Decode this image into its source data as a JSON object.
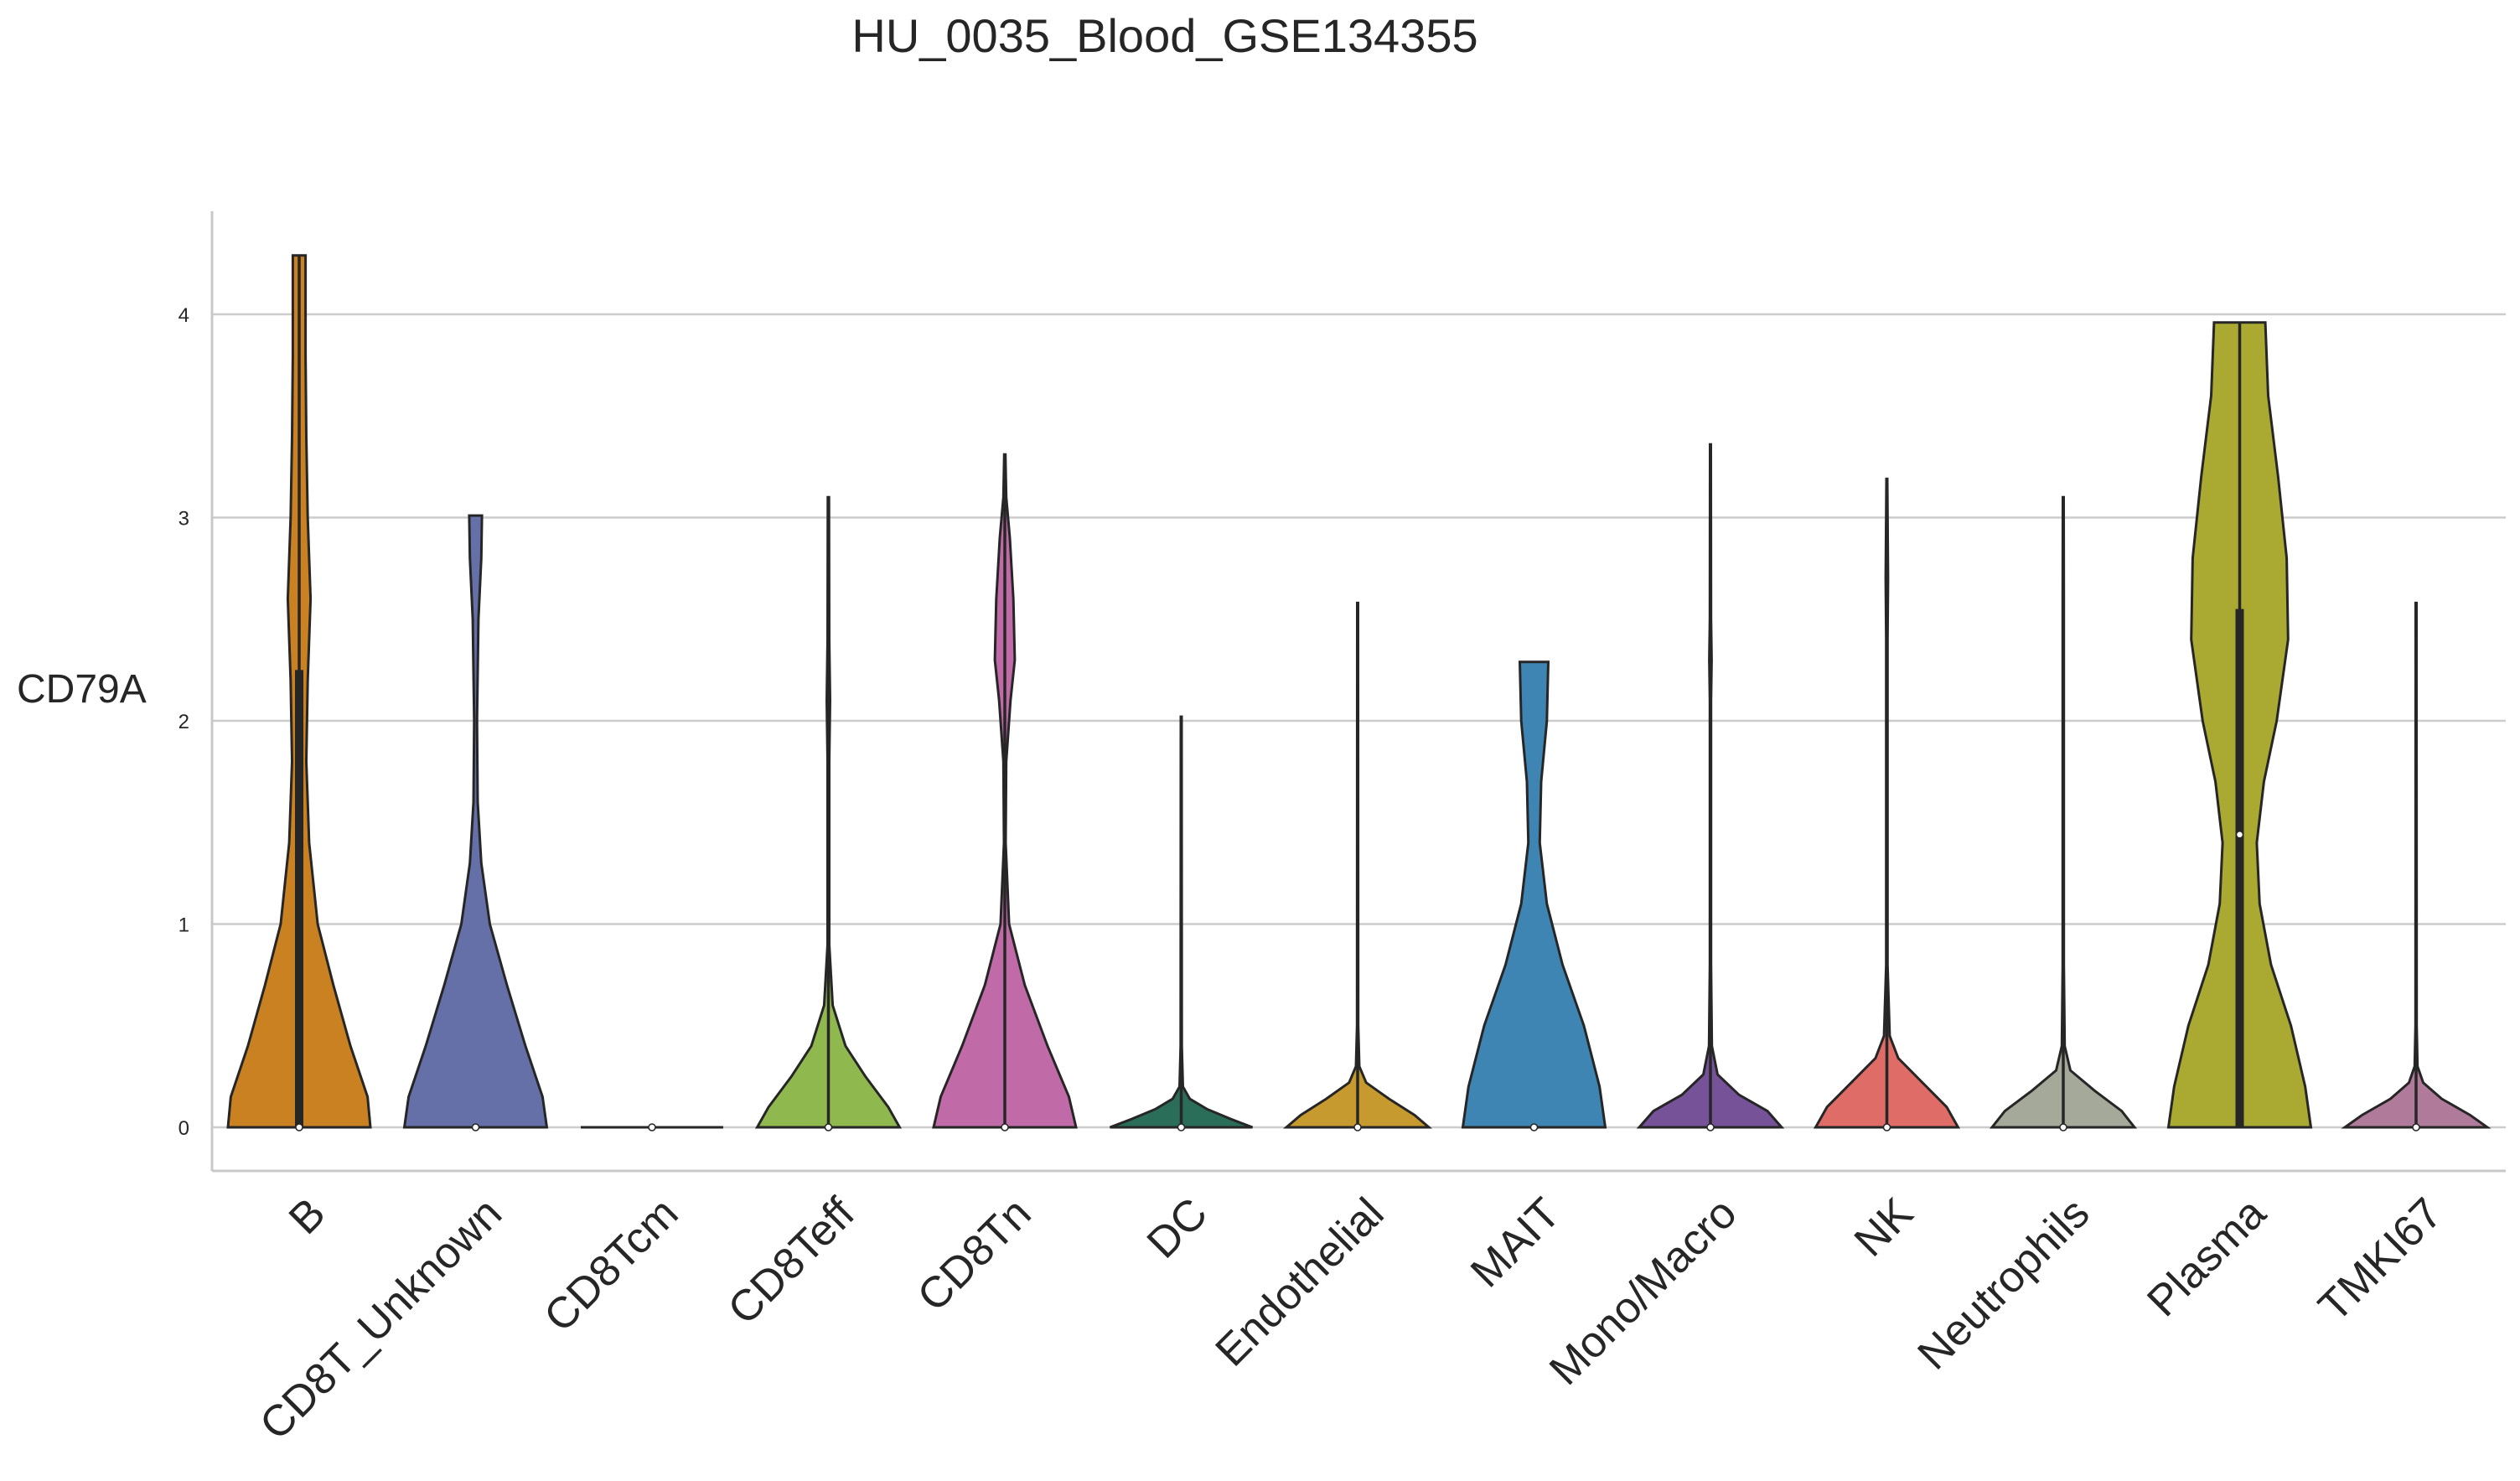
{
  "chart_data": {
    "type": "violin",
    "title": "HU_0035_Blood_GSE134355",
    "xlabel": "",
    "ylabel": "CD79A",
    "ylim": [
      -0.2,
      4.5
    ],
    "yticks": [
      0,
      1,
      2,
      3,
      4
    ],
    "grid": "horizontal",
    "categories": [
      "B",
      "CD8T_Unknown",
      "CD8Tcm",
      "CD8Teff",
      "CD8Tn",
      "DC",
      "Endothelial",
      "MAIT",
      "Mono/Macro",
      "NK",
      "Neutrophils",
      "Plasma",
      "TMKI67"
    ],
    "colors": [
      "#c98121",
      "#6670a8",
      "#8f8f8f",
      "#8fb84f",
      "#c06aa8",
      "#2a6e5a",
      "#c69a2e",
      "#3e85b4",
      "#765298",
      "#df6c66",
      "#a4a99a",
      "#aaaa32",
      "#b07a9a"
    ],
    "series": [
      {
        "name": "B",
        "max": 4.29,
        "q1": 0,
        "median": 0,
        "q3": 2.25,
        "whisker_top": 4.29
      },
      {
        "name": "CD8T_Unknown",
        "max": 3.01,
        "q1": 0,
        "median": 0,
        "q3": 0,
        "whisker_top": 0
      },
      {
        "name": "CD8Tcm",
        "max": 0.0,
        "q1": 0,
        "median": 0,
        "q3": 0,
        "whisker_top": 0
      },
      {
        "name": "CD8Teff",
        "max": 3.1,
        "q1": 0,
        "median": 0,
        "q3": 0,
        "whisker_top": 3.1
      },
      {
        "name": "CD8Tn",
        "max": 3.31,
        "q1": 0,
        "median": 0,
        "q3": 0,
        "whisker_top": 3.31
      },
      {
        "name": "DC",
        "max": 2.02,
        "q1": 0,
        "median": 0,
        "q3": 0,
        "whisker_top": 2.02
      },
      {
        "name": "Endothelial",
        "max": 2.58,
        "q1": 0,
        "median": 0,
        "q3": 0,
        "whisker_top": 2.58
      },
      {
        "name": "MAIT",
        "max": 2.29,
        "q1": 0,
        "median": 0,
        "q3": 0,
        "whisker_top": 0
      },
      {
        "name": "Mono/Macro",
        "max": 3.36,
        "q1": 0,
        "median": 0,
        "q3": 0,
        "whisker_top": 3.36
      },
      {
        "name": "NK",
        "max": 3.19,
        "q1": 0,
        "median": 0,
        "q3": 0,
        "whisker_top": 3.19
      },
      {
        "name": "Neutrophils",
        "max": 3.1,
        "q1": 0,
        "median": 0,
        "q3": 0,
        "whisker_top": 3.1
      },
      {
        "name": "Plasma",
        "max": 3.96,
        "q1": 0,
        "median": 1.44,
        "q3": 2.55,
        "whisker_top": 3.96
      },
      {
        "name": "TMKI67",
        "max": 2.58,
        "q1": 0,
        "median": 0,
        "q3": 0,
        "whisker_top": 2.58
      }
    ]
  }
}
